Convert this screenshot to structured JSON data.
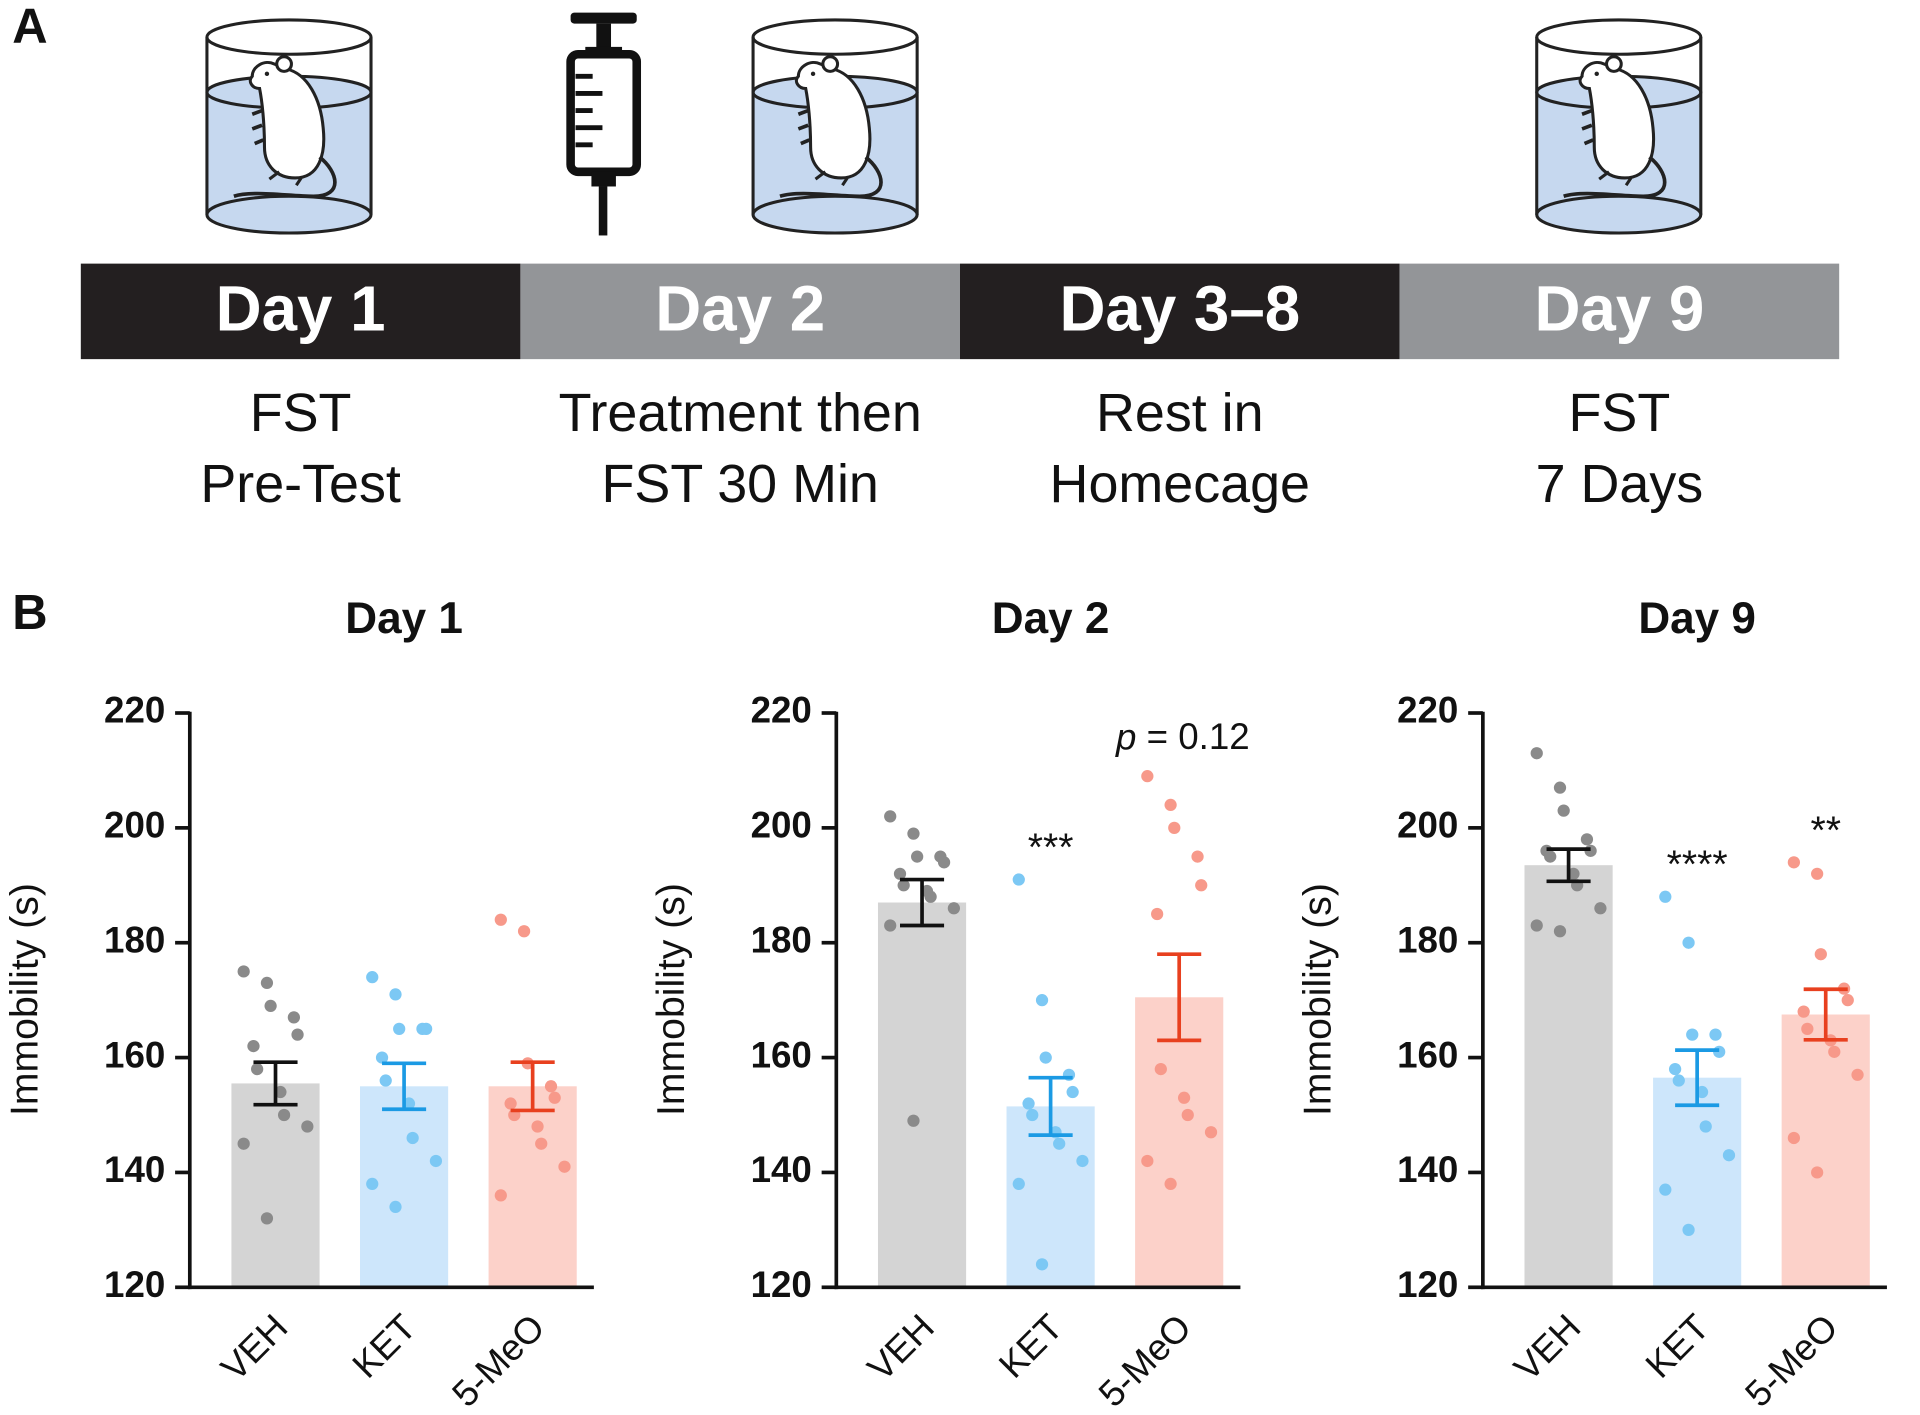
{
  "panel_a": {
    "label": "A",
    "timeline": [
      {
        "day": "Day 1",
        "description": [
          "FST",
          "Pre-Test"
        ]
      },
      {
        "day": "Day 2",
        "description": [
          "Treatment then",
          "FST 30 Min"
        ]
      },
      {
        "day": "Day 3–8",
        "description": [
          "Rest in",
          "Homecage"
        ]
      },
      {
        "day": "Day 9",
        "description": [
          "FST",
          "7 Days"
        ]
      }
    ]
  },
  "panel_b": {
    "label": "B"
  },
  "chart_data": [
    {
      "type": "bar",
      "title": "Day 1",
      "y_label": "Immobility (s)",
      "categories": [
        "VEH",
        "KET",
        "5-MeO"
      ],
      "values": [
        155.5,
        155,
        155
      ],
      "errors": [
        3.7,
        4,
        4.2
      ],
      "points": [
        [
          175,
          173,
          169,
          167,
          164,
          162,
          158,
          154,
          150,
          148,
          145,
          132
        ],
        [
          174,
          171,
          165,
          165,
          165,
          160,
          156,
          152,
          146,
          142,
          138,
          134
        ],
        [
          184,
          182,
          159,
          155,
          153,
          152,
          150,
          148,
          145,
          141,
          136
        ]
      ],
      "annotations": [
        null,
        null,
        null
      ],
      "bar_colors": [
        "#d4d4d4",
        "#cde6fb",
        "#fcd1c9"
      ],
      "point_colors": [
        "#8a8a8a",
        "#7cc8f4",
        "#f7998a"
      ],
      "error_colors": [
        "#111111",
        "#1b9ae4",
        "#e8401f"
      ],
      "ylim": [
        120,
        220
      ],
      "yticks": [
        120,
        140,
        160,
        180,
        200,
        220
      ]
    },
    {
      "type": "bar",
      "title": "Day 2",
      "y_label": "Immobility (s)",
      "categories": [
        "VEH",
        "KET",
        "5-MeO"
      ],
      "values": [
        187,
        151.5,
        170.5
      ],
      "errors": [
        4,
        5,
        7.5
      ],
      "points": [
        [
          202,
          199,
          195,
          195,
          194,
          192,
          190,
          189,
          188,
          186,
          183,
          149
        ],
        [
          191,
          170,
          160,
          157,
          154,
          152,
          150,
          147,
          145,
          142,
          138,
          124
        ],
        [
          209,
          204,
          200,
          195,
          190,
          185,
          158,
          153,
          150,
          147,
          142,
          138
        ]
      ],
      "annotations": [
        null,
        "***",
        "p = 0.12"
      ],
      "bar_colors": [
        "#d4d4d4",
        "#cde6fb",
        "#fcd1c9"
      ],
      "point_colors": [
        "#8a8a8a",
        "#7cc8f4",
        "#f7998a"
      ],
      "error_colors": [
        "#111111",
        "#1b9ae4",
        "#e8401f"
      ],
      "ylim": [
        120,
        220
      ],
      "yticks": [
        120,
        140,
        160,
        180,
        200,
        220
      ]
    },
    {
      "type": "bar",
      "title": "Day 9",
      "y_label": "Immobility (s)",
      "categories": [
        "VEH",
        "KET",
        "5-MeO"
      ],
      "values": [
        193.5,
        156.5,
        167.5
      ],
      "errors": [
        2.8,
        4.8,
        4.4
      ],
      "points": [
        [
          213,
          207,
          203,
          198,
          196,
          196,
          195,
          192,
          190,
          186,
          183,
          182
        ],
        [
          188,
          180,
          164,
          164,
          161,
          158,
          156,
          154,
          148,
          143,
          137,
          130
        ],
        [
          194,
          192,
          178,
          172,
          170,
          168,
          165,
          163,
          161,
          157,
          146,
          140
        ]
      ],
      "annotations": [
        null,
        "****",
        "**"
      ],
      "bar_colors": [
        "#d4d4d4",
        "#cde6fb",
        "#fcd1c9"
      ],
      "point_colors": [
        "#8a8a8a",
        "#7cc8f4",
        "#f7998a"
      ],
      "error_colors": [
        "#111111",
        "#1b9ae4",
        "#e8401f"
      ],
      "ylim": [
        120,
        220
      ],
      "yticks": [
        120,
        140,
        160,
        180,
        200,
        220
      ]
    }
  ]
}
